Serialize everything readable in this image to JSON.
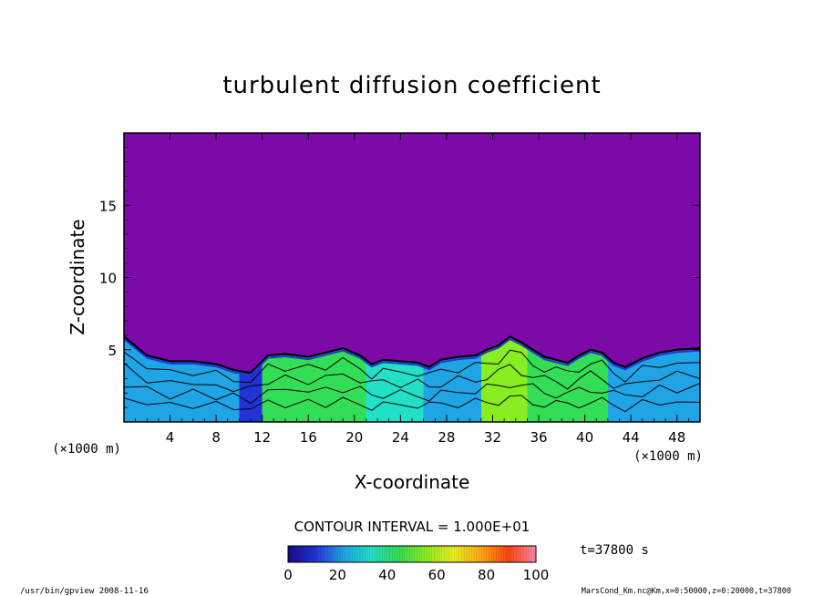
{
  "chart_data": {
    "type": "heatmap",
    "title": "turbulent diffusion coefficient",
    "xlabel": "X-coordinate",
    "ylabel": "Z-coordinate",
    "x_unit_label": "(×1000 m)",
    "y_unit_label": "(×1000 m)",
    "xlim": [
      0,
      50
    ],
    "ylim": [
      0,
      20
    ],
    "x_ticks": [
      4,
      8,
      12,
      16,
      20,
      24,
      28,
      32,
      36,
      40,
      44,
      48
    ],
    "y_ticks": [
      5,
      10,
      15
    ],
    "contour_interval_text": "CONTOUR INTERVAL = 1.000E+01",
    "time_text": "t=37800 s",
    "colorbar": {
      "range": [
        0,
        100
      ],
      "ticks": [
        0,
        20,
        40,
        60,
        80,
        100
      ],
      "colors": [
        "#1a0a8c",
        "#2233d6",
        "#1fa4e6",
        "#22e0c8",
        "#33dd55",
        "#88ee22",
        "#eeee22",
        "#ffaa11",
        "#ff4411",
        "#ff88aa"
      ]
    },
    "background_value": 0,
    "background_color": "#7b0aa8",
    "boundary_layer_top_km": [
      [
        0,
        5.9
      ],
      [
        2,
        4.6
      ],
      [
        4,
        4.2
      ],
      [
        6,
        4.2
      ],
      [
        8,
        4.0
      ],
      [
        9.5,
        3.6
      ],
      [
        11,
        3.4
      ],
      [
        12.5,
        4.6
      ],
      [
        14,
        4.7
      ],
      [
        16,
        4.5
      ],
      [
        17.5,
        4.8
      ],
      [
        19,
        5.1
      ],
      [
        20.5,
        4.6
      ],
      [
        21.5,
        4.0
      ],
      [
        22.5,
        4.3
      ],
      [
        24,
        4.2
      ],
      [
        25.5,
        4.1
      ],
      [
        26.5,
        3.8
      ],
      [
        27.5,
        4.3
      ],
      [
        29,
        4.5
      ],
      [
        30.5,
        4.6
      ],
      [
        31.5,
        5.0
      ],
      [
        32.5,
        5.3
      ],
      [
        33.5,
        5.9
      ],
      [
        34.5,
        5.5
      ],
      [
        35.5,
        5.0
      ],
      [
        36.5,
        4.5
      ],
      [
        37.5,
        4.3
      ],
      [
        38.5,
        4.1
      ],
      [
        39.5,
        4.6
      ],
      [
        40.5,
        5.0
      ],
      [
        41.5,
        4.8
      ],
      [
        42.5,
        4.1
      ],
      [
        43.5,
        3.8
      ],
      [
        45,
        4.4
      ],
      [
        46.5,
        4.8
      ],
      [
        48,
        5.0
      ],
      [
        50,
        5.1
      ]
    ],
    "regions": [
      {
        "x": [
          0,
          10
        ],
        "value": 25
      },
      {
        "x": [
          10,
          12
        ],
        "value": 10
      },
      {
        "x": [
          12,
          16
        ],
        "value": 45
      },
      {
        "x": [
          16,
          21
        ],
        "value": 40
      },
      {
        "x": [
          21,
          26
        ],
        "value": 38
      },
      {
        "x": [
          26,
          31
        ],
        "value": 22
      },
      {
        "x": [
          31,
          35
        ],
        "value": 55
      },
      {
        "x": [
          35,
          42
        ],
        "value": 40
      },
      {
        "x": [
          42,
          50
        ],
        "value": 22
      }
    ]
  },
  "footer": {
    "left": "/usr/bin/gpview  2008-11-16",
    "right": "MarsCond_Km.nc@Km,x=0:50000,z=0:20000,t=37800"
  }
}
